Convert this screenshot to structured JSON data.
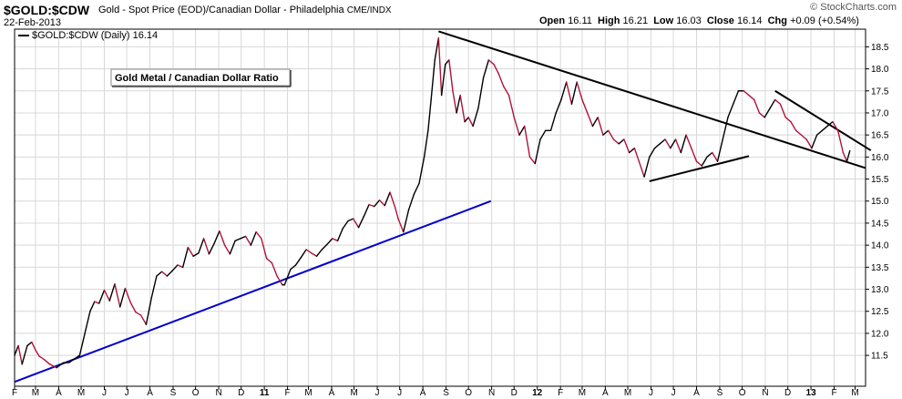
{
  "header": {
    "symbol": "$GOLD:$CDW",
    "description": "Gold - Spot Price (EOD)/Canadian Dollar - Philadelphia",
    "exchange": "CME/INDX",
    "date": "22-Feb-2013",
    "brand": "© StockCharts.com",
    "quote": {
      "open_label": "Open",
      "open": "16.11",
      "high_label": "High",
      "high": "16.21",
      "low_label": "Low",
      "low": "16.03",
      "close_label": "Close",
      "close": "16.14",
      "chg_label": "Chg",
      "chg": "+0.09 (+0.54%)"
    }
  },
  "legend": {
    "text": "$GOLD:$CDW (Daily) 16.14"
  },
  "annotation": {
    "text": "Gold Metal / Canadian Dollar Ratio"
  },
  "colors": {
    "up": "#000000",
    "down": "#b0123a",
    "blue_trend": "#0000cc",
    "black_trend": "#000000",
    "grid": "#d8d8d8"
  },
  "chart_data": {
    "type": "line",
    "ylim": [
      10.8,
      18.9
    ],
    "y_ticks": [
      11.5,
      12.0,
      12.5,
      13.0,
      13.5,
      14.0,
      14.5,
      15.0,
      15.5,
      16.0,
      16.5,
      17.0,
      17.5,
      18.0,
      18.5
    ],
    "y_tick_labels": [
      "11.5",
      "12.0",
      "12.5",
      "13.0",
      "13.5",
      "14.0",
      "14.5",
      "15.0",
      "15.5",
      "16.0",
      "16.5",
      "17.0",
      "17.5",
      "18.0",
      "18.5"
    ],
    "x_range": [
      "2010-02-01",
      "2013-03-15"
    ],
    "x_ticks": [
      {
        "label": "F",
        "date": "2010-02-01"
      },
      {
        "label": "M",
        "date": "2010-03-01"
      },
      {
        "label": "A",
        "date": "2010-04-01"
      },
      {
        "label": "M",
        "date": "2010-05-01"
      },
      {
        "label": "J",
        "date": "2010-06-01"
      },
      {
        "label": "J",
        "date": "2010-07-01"
      },
      {
        "label": "A",
        "date": "2010-08-01"
      },
      {
        "label": "S",
        "date": "2010-09-01"
      },
      {
        "label": "O",
        "date": "2010-10-01"
      },
      {
        "label": "N",
        "date": "2010-11-01"
      },
      {
        "label": "D",
        "date": "2010-12-01"
      },
      {
        "label": "11",
        "date": "2011-01-01"
      },
      {
        "label": "F",
        "date": "2011-02-01"
      },
      {
        "label": "M",
        "date": "2011-03-01"
      },
      {
        "label": "A",
        "date": "2011-04-01"
      },
      {
        "label": "M",
        "date": "2011-05-01"
      },
      {
        "label": "J",
        "date": "2011-06-01"
      },
      {
        "label": "J",
        "date": "2011-07-01"
      },
      {
        "label": "A",
        "date": "2011-08-01"
      },
      {
        "label": "S",
        "date": "2011-09-01"
      },
      {
        "label": "O",
        "date": "2011-10-01"
      },
      {
        "label": "N",
        "date": "2011-11-01"
      },
      {
        "label": "D",
        "date": "2011-12-01"
      },
      {
        "label": "12",
        "date": "2012-01-01"
      },
      {
        "label": "F",
        "date": "2012-02-01"
      },
      {
        "label": "M",
        "date": "2012-03-01"
      },
      {
        "label": "A",
        "date": "2012-04-01"
      },
      {
        "label": "M",
        "date": "2012-05-01"
      },
      {
        "label": "J",
        "date": "2012-06-01"
      },
      {
        "label": "J",
        "date": "2012-07-01"
      },
      {
        "label": "A",
        "date": "2012-08-01"
      },
      {
        "label": "S",
        "date": "2012-09-01"
      },
      {
        "label": "O",
        "date": "2012-10-01"
      },
      {
        "label": "N",
        "date": "2012-11-01"
      },
      {
        "label": "D",
        "date": "2012-12-01"
      },
      {
        "label": "13",
        "date": "2013-01-01"
      },
      {
        "label": "F",
        "date": "2013-02-01"
      },
      {
        "label": "M",
        "date": "2013-03-01"
      }
    ],
    "series": [
      {
        "x": [
          "2010-02-01",
          "2010-02-06",
          "2010-02-11",
          "2010-02-18",
          "2010-02-24",
          "2010-03-01",
          "2010-03-06",
          "2010-03-13",
          "2010-03-20",
          "2010-03-29",
          "2010-04-07",
          "2010-04-15",
          "2010-04-22",
          "2010-04-29",
          "2010-05-06",
          "2010-05-13",
          "2010-05-19",
          "2010-05-25",
          "2010-06-01",
          "2010-06-08",
          "2010-06-15",
          "2010-06-22",
          "2010-06-29",
          "2010-07-06",
          "2010-07-13",
          "2010-07-20",
          "2010-07-27",
          "2010-08-03",
          "2010-08-10",
          "2010-08-17",
          "2010-08-24",
          "2010-08-31",
          "2010-09-07",
          "2010-09-14",
          "2010-09-21",
          "2010-09-28",
          "2010-10-05",
          "2010-10-12",
          "2010-10-19",
          "2010-10-26",
          "2010-11-02",
          "2010-11-09",
          "2010-11-16",
          "2010-11-23",
          "2010-11-30",
          "2010-12-07",
          "2010-12-14",
          "2010-12-21",
          "2010-12-28",
          "2011-01-04",
          "2011-01-11",
          "2011-01-18",
          "2011-01-25",
          "2011-01-28",
          "2011-02-05",
          "2011-02-12",
          "2011-02-19",
          "2011-02-26",
          "2011-03-05",
          "2011-03-12",
          "2011-03-19",
          "2011-03-26",
          "2011-04-02",
          "2011-04-09",
          "2011-04-16",
          "2011-04-23",
          "2011-04-30",
          "2011-05-07",
          "2011-05-14",
          "2011-05-21",
          "2011-05-28",
          "2011-06-04",
          "2011-06-11",
          "2011-06-18",
          "2011-06-25",
          "2011-06-29",
          "2011-07-06",
          "2011-07-13",
          "2011-07-20",
          "2011-07-27",
          "2011-08-03",
          "2011-08-08",
          "2011-08-12",
          "2011-08-17",
          "2011-08-22",
          "2011-08-26",
          "2011-08-31",
          "2011-09-05",
          "2011-09-10",
          "2011-09-15",
          "2011-09-20",
          "2011-09-26",
          "2011-10-01",
          "2011-10-07",
          "2011-10-14",
          "2011-10-21",
          "2011-10-28",
          "2011-11-04",
          "2011-11-10",
          "2011-11-17",
          "2011-11-24",
          "2011-12-01",
          "2011-12-08",
          "2011-12-15",
          "2011-12-22",
          "2011-12-29",
          "2012-01-05",
          "2012-01-12",
          "2012-01-19",
          "2012-01-26",
          "2012-02-02",
          "2012-02-09",
          "2012-02-16",
          "2012-02-23",
          "2012-03-01",
          "2012-03-08",
          "2012-03-15",
          "2012-03-22",
          "2012-03-29",
          "2012-04-05",
          "2012-04-12",
          "2012-04-19",
          "2012-04-26",
          "2012-05-03",
          "2012-05-10",
          "2012-05-16",
          "2012-05-23",
          "2012-05-30",
          "2012-06-06",
          "2012-06-13",
          "2012-06-20",
          "2012-06-27",
          "2012-07-04",
          "2012-07-11",
          "2012-07-18",
          "2012-07-25",
          "2012-08-01",
          "2012-08-08",
          "2012-08-15",
          "2012-08-22",
          "2012-08-29",
          "2012-09-05",
          "2012-09-12",
          "2012-09-19",
          "2012-09-26",
          "2012-10-03",
          "2012-10-10",
          "2012-10-17",
          "2012-10-24",
          "2012-10-31",
          "2012-11-07",
          "2012-11-14",
          "2012-11-21",
          "2012-11-28",
          "2012-12-05",
          "2012-12-12",
          "2012-12-19",
          "2012-12-26",
          "2013-01-02",
          "2013-01-09",
          "2013-01-16",
          "2013-01-23",
          "2013-01-30",
          "2013-02-06",
          "2013-02-13",
          "2013-02-18",
          "2013-02-22"
        ],
        "y": [
          11.5,
          11.72,
          11.3,
          11.72,
          11.8,
          11.62,
          11.48,
          11.4,
          11.3,
          11.22,
          11.33,
          11.34,
          11.42,
          11.5,
          12.0,
          12.5,
          12.72,
          12.68,
          12.98,
          12.74,
          13.12,
          12.6,
          13.02,
          12.7,
          12.48,
          12.41,
          12.2,
          12.8,
          13.3,
          13.4,
          13.3,
          13.42,
          13.55,
          13.5,
          13.95,
          13.75,
          13.82,
          14.15,
          13.8,
          14.04,
          14.32,
          14.0,
          13.8,
          14.1,
          14.15,
          14.2,
          14.0,
          14.3,
          14.15,
          13.7,
          13.6,
          13.3,
          13.1,
          13.1,
          13.45,
          13.55,
          13.72,
          13.9,
          13.82,
          13.75,
          13.9,
          14.02,
          14.15,
          14.1,
          14.38,
          14.55,
          14.6,
          14.4,
          14.65,
          14.92,
          14.88,
          15.02,
          14.9,
          15.2,
          14.85,
          14.6,
          14.3,
          14.8,
          15.15,
          15.4,
          16.02,
          16.6,
          17.3,
          18.2,
          18.7,
          17.4,
          18.1,
          18.2,
          17.5,
          17.0,
          17.4,
          16.8,
          16.9,
          16.7,
          17.1,
          17.8,
          18.2,
          18.1,
          17.9,
          17.6,
          17.4,
          16.9,
          16.5,
          16.7,
          16.0,
          15.85,
          16.4,
          16.6,
          16.6,
          17.0,
          17.3,
          17.7,
          17.2,
          17.7,
          17.3,
          17.0,
          16.7,
          16.9,
          16.5,
          16.6,
          16.4,
          16.3,
          16.4,
          16.1,
          16.2,
          15.9,
          15.55,
          16.0,
          16.2,
          16.3,
          16.4,
          16.2,
          16.4,
          16.1,
          16.5,
          16.2,
          15.9,
          15.8,
          16.0,
          16.1,
          15.9,
          16.4,
          16.9,
          17.2,
          17.5,
          17.5,
          17.4,
          17.3,
          17.0,
          16.9,
          17.1,
          17.3,
          17.2,
          16.9,
          16.8,
          16.6,
          16.5,
          16.4,
          16.2,
          16.5,
          16.6,
          16.7,
          16.8,
          16.6,
          16.1,
          15.9,
          16.14
        ]
      }
    ]
  }
}
